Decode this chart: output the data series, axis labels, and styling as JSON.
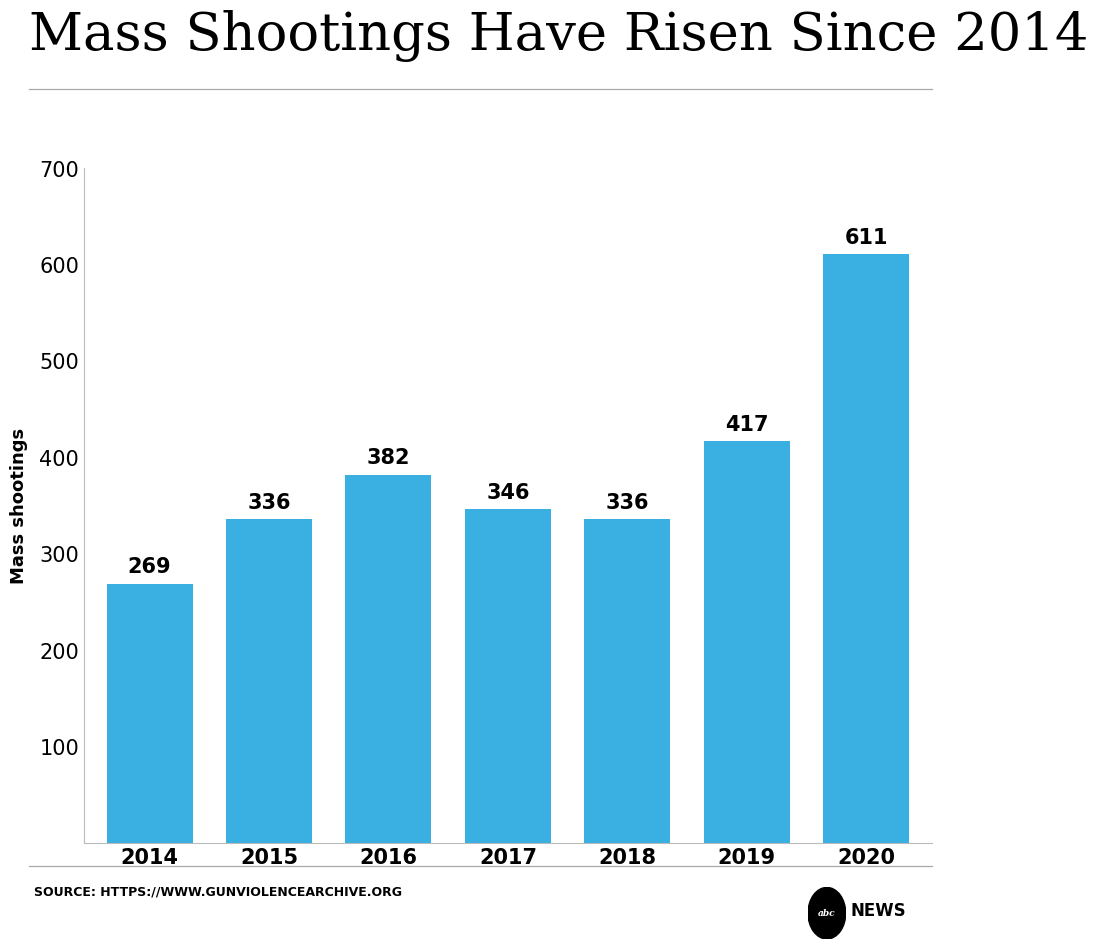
{
  "title": "Mass Shootings Have Risen Since 2014",
  "years": [
    "2014",
    "2015",
    "2016",
    "2017",
    "2018",
    "2019",
    "2020"
  ],
  "values": [
    269,
    336,
    382,
    346,
    336,
    417,
    611
  ],
  "bar_color": "#3ab0e2",
  "ylabel": "Mass shootings",
  "ylim": [
    0,
    700
  ],
  "yticks": [
    0,
    100,
    200,
    300,
    400,
    500,
    600,
    700
  ],
  "background_color": "#ffffff",
  "title_fontsize": 38,
  "label_fontsize": 13,
  "tick_fontsize": 15,
  "value_fontsize": 15,
  "source_text": "SOURCE: HTTPS://WWW.GUNVIOLENCEARCHIVE.ORG",
  "source_fontsize": 9,
  "bar_width": 0.72
}
